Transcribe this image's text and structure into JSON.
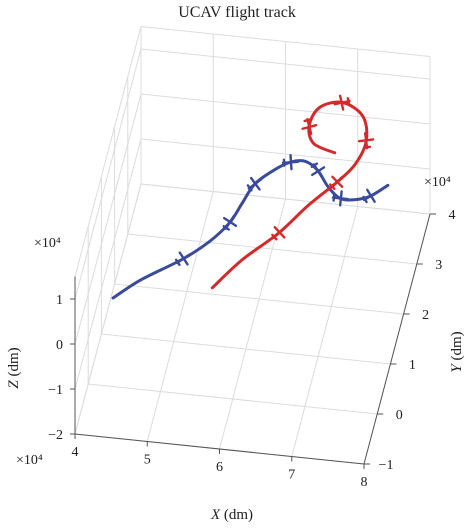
{
  "chart_data": {
    "type": "line",
    "title": "UCAV flight track",
    "xlabel": "X (dm)",
    "ylabel": "Y (dm)",
    "zlabel": "Z (dm)",
    "x_exponent": "×10⁴",
    "y_exponent": "×10⁴",
    "z_exponent": "×10⁴",
    "x_ticks": [
      "4",
      "5",
      "6",
      "7",
      "8"
    ],
    "y_ticks": [
      "−1",
      "0",
      "1",
      "2",
      "3",
      "4"
    ],
    "z_ticks": [
      "−2",
      "−1",
      "0",
      "1"
    ],
    "xlim": [
      40000,
      80000
    ],
    "ylim": [
      -10000,
      40000
    ],
    "zlim": [
      -20000,
      15000
    ],
    "grid": true,
    "series": [
      {
        "color": "#3a4a9c",
        "x": [
          44000,
          47000,
          52000,
          55000,
          57000,
          58000,
          59000,
          61000,
          63000,
          65000,
          67000,
          69000,
          71000,
          73000,
          75000,
          77000
        ],
        "y": [
          -3000,
          1000,
          6000,
          10000,
          14000,
          18000,
          22000,
          25000,
          27000,
          27500,
          26000,
          23000,
          21000,
          21000,
          22000,
          24500
        ],
        "z": [
          0,
          0,
          0,
          0,
          0,
          0,
          0,
          0,
          0,
          0,
          0,
          0,
          0,
          0,
          0,
          0
        ]
      },
      {
        "color": "#d42a2a",
        "x": [
          57000,
          60000,
          64000,
          67000,
          70000,
          72000,
          73000,
          72000,
          69000,
          66000,
          65000,
          66000,
          69000
        ],
        "y": [
          1000,
          7000,
          13000,
          19000,
          24000,
          27000,
          30000,
          33000,
          34000,
          33000,
          30500,
          28500,
          28000
        ],
        "z": [
          0,
          0,
          0,
          0,
          0,
          1000,
          3000,
          5000,
          6500,
          6000,
          4500,
          3000,
          2000
        ]
      }
    ]
  }
}
